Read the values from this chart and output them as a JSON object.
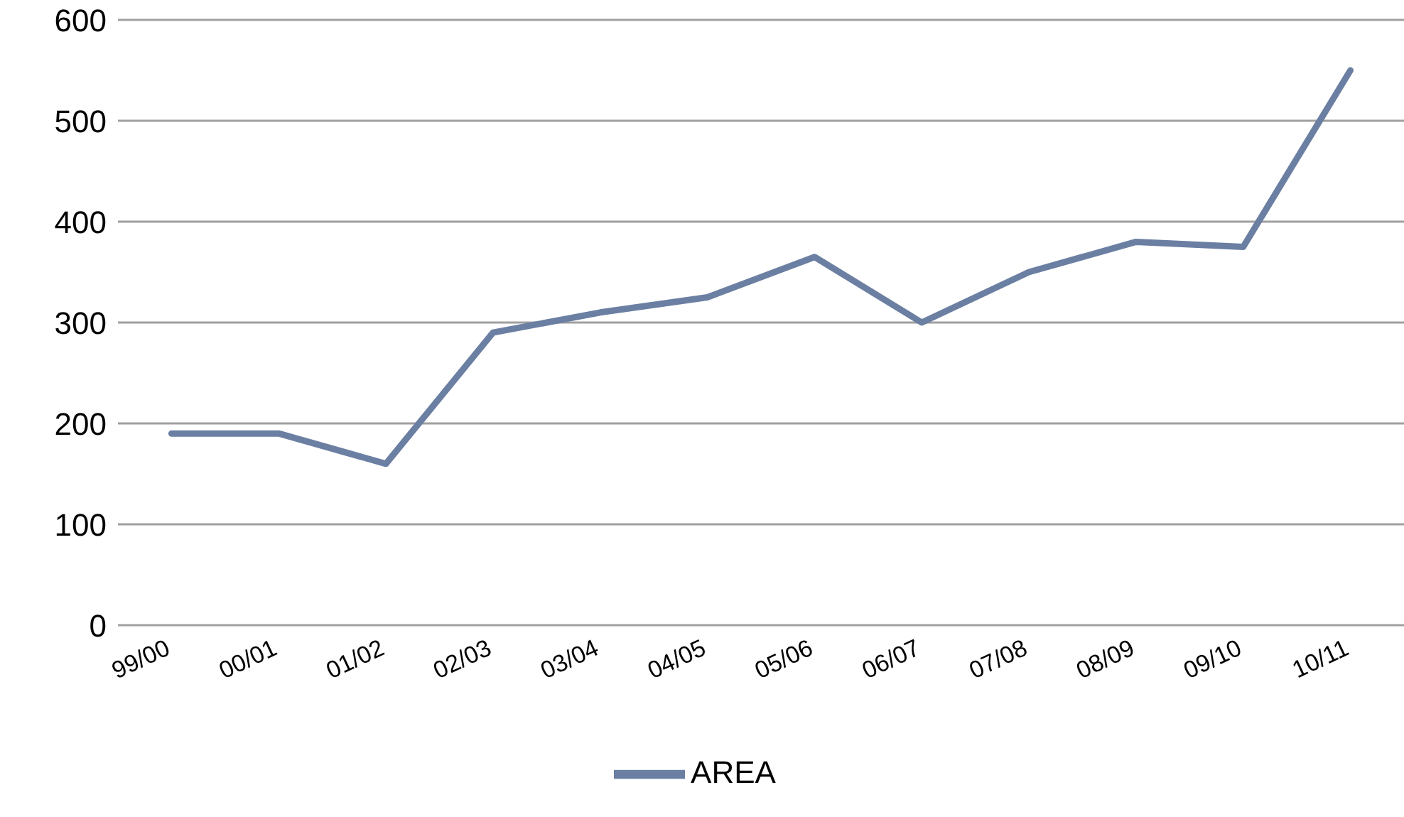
{
  "chart_data": {
    "type": "line",
    "categories": [
      "99/00",
      "00/01",
      "01/02",
      "02/03",
      "03/04",
      "04/05",
      "05/06",
      "06/07",
      "07/08",
      "08/09",
      "09/10",
      "10/11"
    ],
    "series": [
      {
        "name": "AREA",
        "color": "#6b7fa3",
        "values": [
          190,
          190,
          160,
          290,
          310,
          325,
          365,
          300,
          350,
          380,
          375,
          550
        ]
      }
    ],
    "ylim": [
      0,
      600
    ],
    "yticks": [
      0,
      100,
      200,
      300,
      400,
      500,
      600
    ],
    "grid": "y",
    "legend": "bottom",
    "marker": "none",
    "line_style": "solid"
  }
}
